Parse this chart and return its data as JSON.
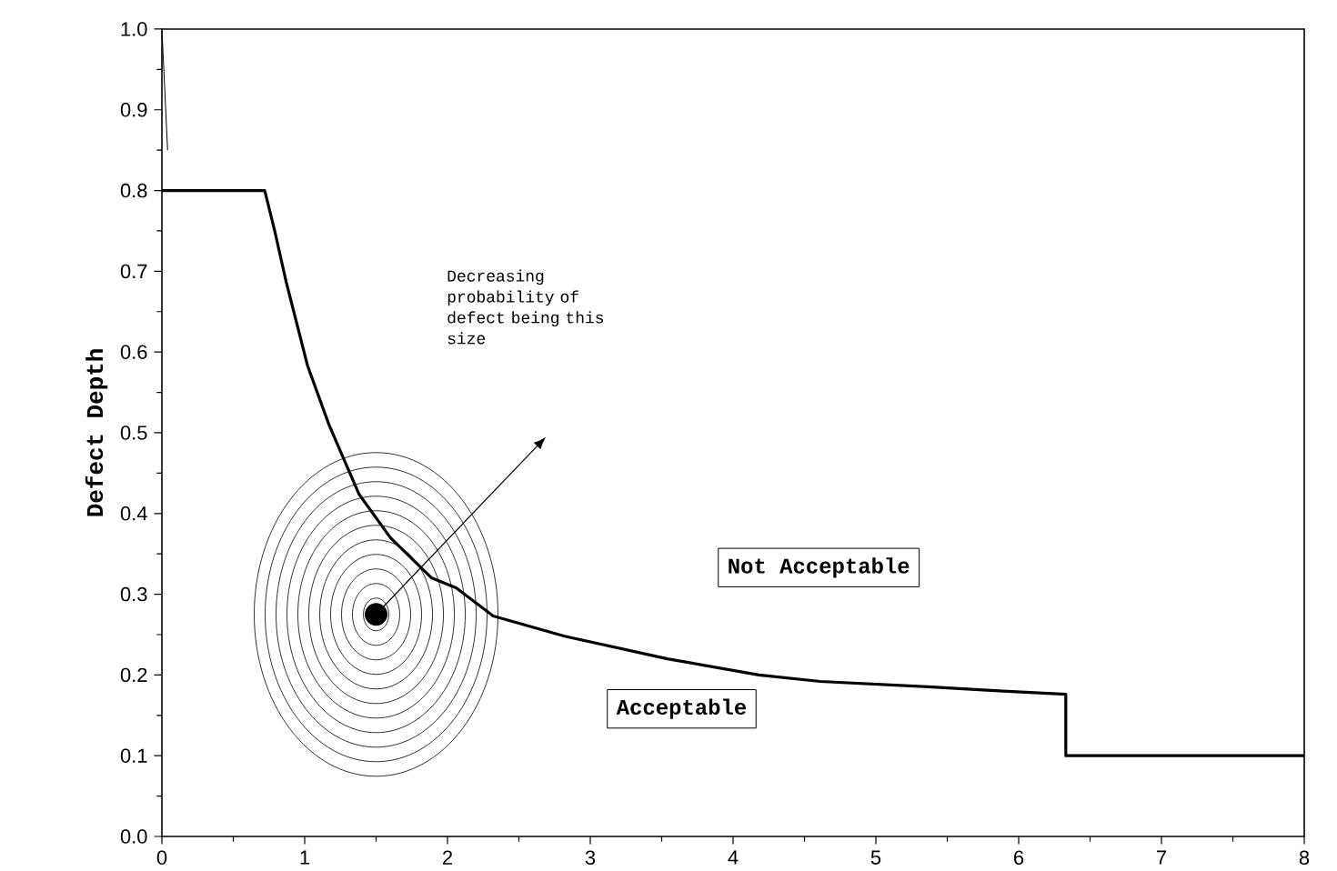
{
  "chart_data": {
    "type": "line",
    "ylabel": "Defect Depth",
    "xlim": [
      0,
      8
    ],
    "ylim": [
      0,
      1.0
    ],
    "xticks": [
      0,
      1,
      2,
      3,
      4,
      5,
      6,
      7,
      8
    ],
    "yticks": [
      {
        "value": 0,
        "label": "0.0"
      },
      {
        "value": 0.1,
        "label": "0.1"
      },
      {
        "value": 0.2,
        "label": "0.2"
      },
      {
        "value": 0.3,
        "label": "0.3"
      },
      {
        "value": 0.4,
        "label": "0.4"
      },
      {
        "value": 0.5,
        "label": "0.5"
      },
      {
        "value": 0.6,
        "label": "0.6"
      },
      {
        "value": 0.7,
        "label": "0.7"
      },
      {
        "value": 0.8,
        "label": "0.8"
      },
      {
        "value": 0.9,
        "label": "0.9"
      },
      {
        "value": 1.0,
        "label": "1.0"
      }
    ],
    "grid": false,
    "series": [
      {
        "color": "#000000",
        "x": [
          0,
          0.72,
          0.79,
          0.87,
          1.02,
          1.17,
          1.38,
          1.6,
          1.89,
          2.06,
          2.32,
          2.82,
          3.54,
          4.18,
          4.61,
          5.3,
          5.89,
          6.33,
          6.33,
          8
        ],
        "values": [
          0.8,
          0.8,
          0.75,
          0.687,
          0.583,
          0.51,
          0.424,
          0.37,
          0.32,
          0.308,
          0.273,
          0.248,
          0.22,
          0.2,
          0.192,
          0.186,
          0.18,
          0.176,
          0.1,
          0.1
        ]
      },
      {
        "color": "#000000",
        "x": [
          0,
          0.04
        ],
        "values": [
          1.0,
          0.85
        ]
      },
      {
        "type": "scatter",
        "marker": "circle",
        "color": "#000000",
        "x": [
          1.5
        ],
        "values": [
          0.275
        ]
      }
    ],
    "annotations": [
      "Decreasing probability of defect being this size",
      "Not Acceptable",
      "Acceptable"
    ]
  }
}
